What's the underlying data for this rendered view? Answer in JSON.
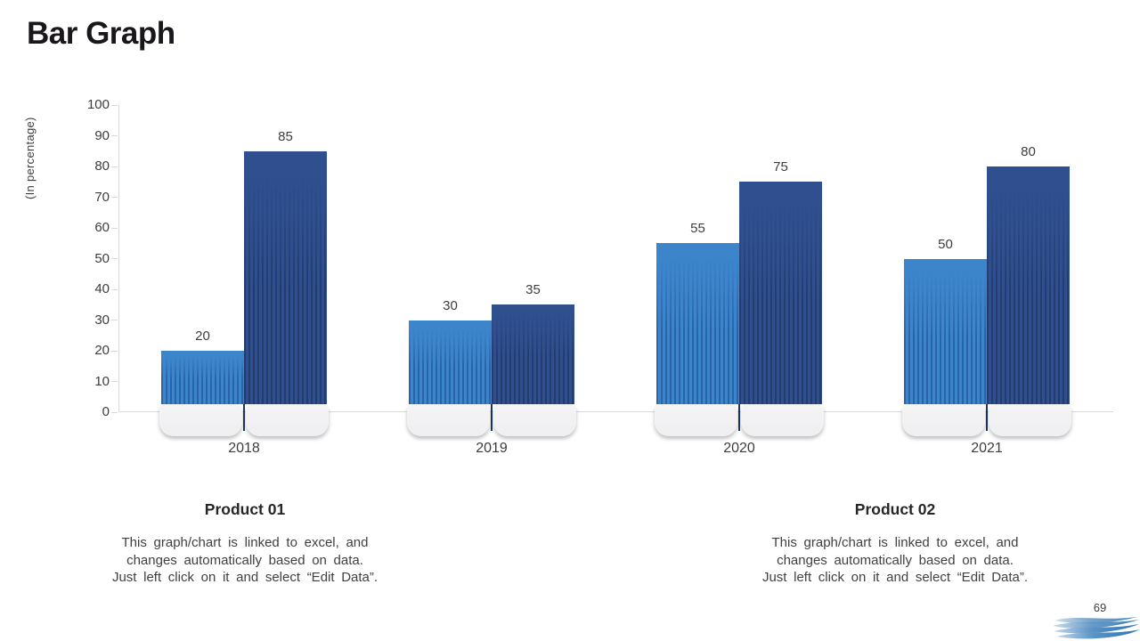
{
  "slide": {
    "title": "Bar Graph",
    "page_number": "69"
  },
  "chart_data": {
    "type": "bar",
    "title": "",
    "xlabel": "",
    "ylabel": "(In percentage)",
    "categories": [
      "2018",
      "2019",
      "2020",
      "2021"
    ],
    "series": [
      {
        "name": "Product 01",
        "color": "#3C85CB",
        "stripe_color": "#2864AA",
        "values": [
          20,
          30,
          55,
          50
        ]
      },
      {
        "name": "Product 02",
        "color": "#2F4F8E",
        "stripe_color": "#223C70",
        "values": [
          85,
          35,
          75,
          80
        ]
      }
    ],
    "ylim": [
      0,
      100
    ],
    "ytick_step": 10,
    "grid": false,
    "value_labels": true,
    "legend_position": "none"
  },
  "descriptions": [
    {
      "heading": "Product 01",
      "lines": [
        "This graph/chart is linked to excel, and",
        "changes automatically based on data.",
        "Just left click on it and select “Edit Data”."
      ]
    },
    {
      "heading": "Product 02",
      "lines": [
        "This graph/chart is linked to excel, and",
        "changes automatically based on data.",
        "Just left click on it and select “Edit Data”."
      ]
    }
  ],
  "colors": {
    "axis": "#d9d9d9",
    "pedestal": "#f2f2f3",
    "pedestal_divider": "#1f3864",
    "label_text": "#3d3d3d",
    "title_text": "#19171b",
    "logo_blue_dark": "#2e74b5",
    "logo_blue_light": "#c9d8e8"
  }
}
